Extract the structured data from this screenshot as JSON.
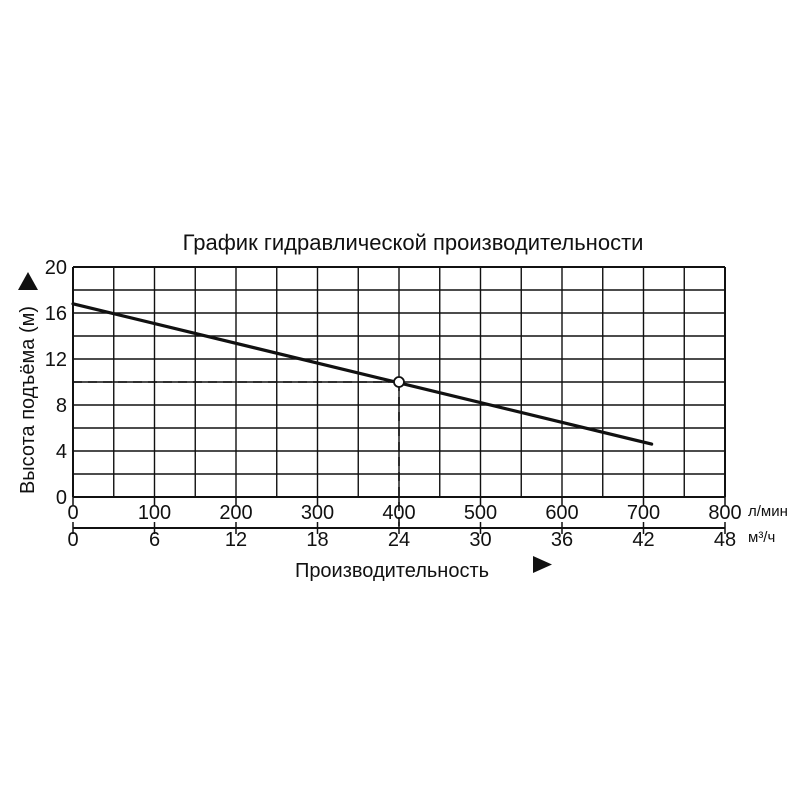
{
  "chart_data": {
    "type": "line",
    "title": "График гидравлической производительности",
    "ylabel": "Высота подъёма (м)",
    "xlabel": "Производительность",
    "ylim": [
      0,
      20
    ],
    "y_ticks": [
      0,
      4,
      8,
      12,
      16,
      20
    ],
    "xlim": [
      0,
      800
    ],
    "x_ticks_primary": [
      0,
      100,
      200,
      300,
      400,
      500,
      600,
      700,
      800
    ],
    "x_unit_primary": "л/мин",
    "x_ticks_secondary": [
      0,
      6,
      12,
      18,
      24,
      30,
      36,
      42,
      48
    ],
    "x_unit_secondary": "м³/ч",
    "grid": true,
    "series": [
      {
        "x": [
          0,
          710
        ],
        "y": [
          16.8,
          4.6
        ]
      }
    ],
    "marker": {
      "x": 400,
      "y": 10
    },
    "colors": {
      "line": "#111111",
      "grid": "#111111",
      "background": "#ffffff"
    }
  }
}
